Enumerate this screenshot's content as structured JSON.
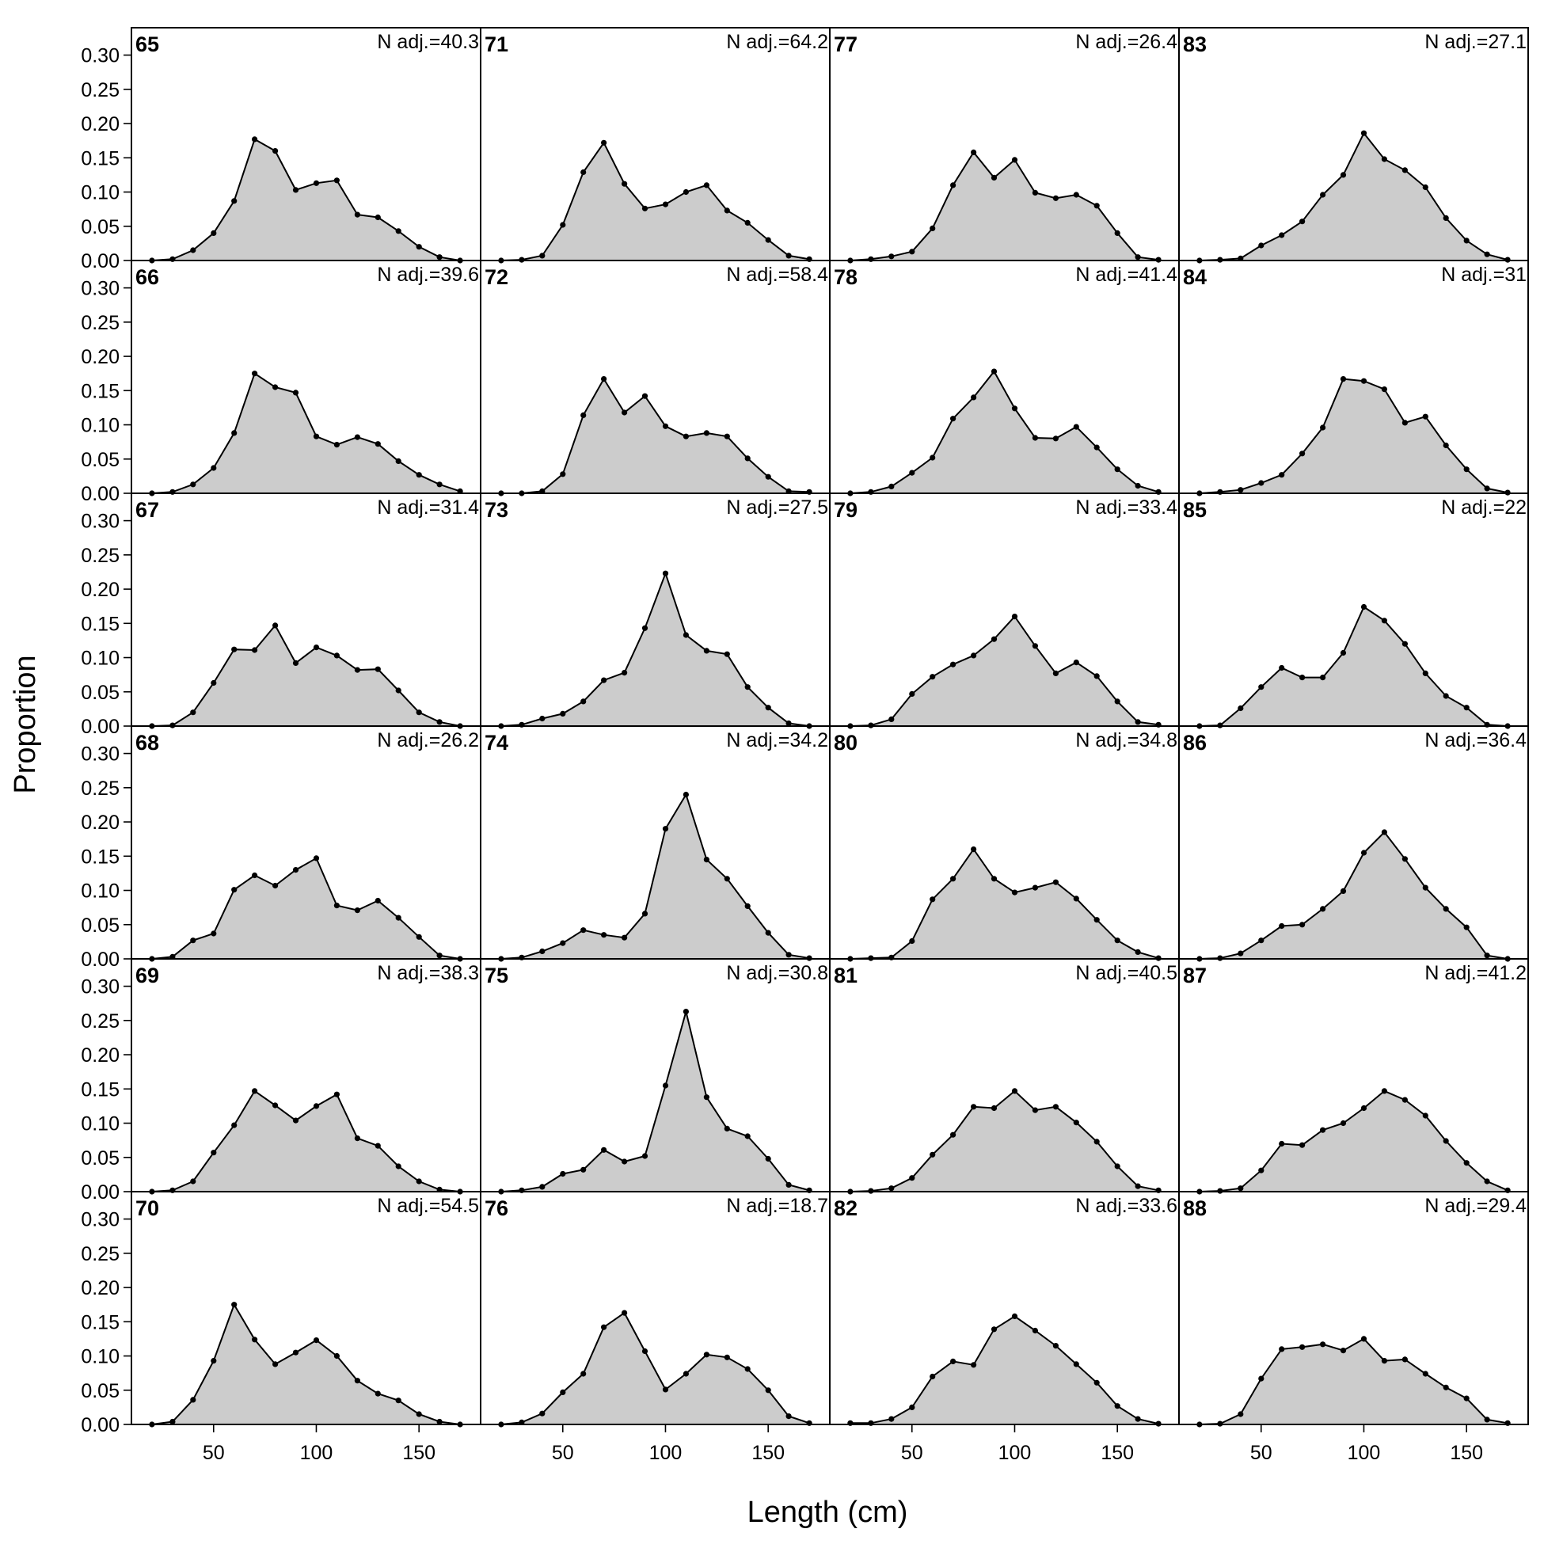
{
  "chart_data": {
    "type": "area",
    "xlabel": "Length (cm)",
    "ylabel": "Proportion",
    "xlim": [
      10,
      180
    ],
    "ylim": [
      0,
      0.34
    ],
    "x_ticks": [
      50,
      100,
      150
    ],
    "y_ticks": [
      "0.00",
      "0.05",
      "0.10",
      "0.15",
      "0.20",
      "0.25",
      "0.30"
    ],
    "x": [
      20,
      30,
      40,
      50,
      60,
      70,
      80,
      90,
      100,
      110,
      120,
      130,
      140,
      150,
      160,
      170
    ],
    "fill_color": "#cccccc",
    "line_color": "#000000",
    "panels": [
      {
        "label": "65",
        "n_adj": "N adj.=40.3",
        "values": [
          0,
          0.002,
          0.015,
          0.04,
          0.087,
          0.177,
          0.16,
          0.103,
          0.113,
          0.117,
          0.067,
          0.063,
          0.043,
          0.02,
          0.005,
          0
        ]
      },
      {
        "label": "66",
        "n_adj": "N adj.=39.6",
        "values": [
          0,
          0.002,
          0.013,
          0.037,
          0.088,
          0.175,
          0.155,
          0.147,
          0.083,
          0.071,
          0.082,
          0.072,
          0.047,
          0.027,
          0.013,
          0.003
        ]
      },
      {
        "label": "67",
        "n_adj": "N adj.=31.4",
        "values": [
          0,
          0.001,
          0.02,
          0.063,
          0.112,
          0.111,
          0.147,
          0.092,
          0.115,
          0.103,
          0.082,
          0.083,
          0.052,
          0.02,
          0.006,
          0
        ]
      },
      {
        "label": "68",
        "n_adj": "N adj.=26.2",
        "values": [
          0,
          0.003,
          0.027,
          0.037,
          0.101,
          0.122,
          0.107,
          0.13,
          0.147,
          0.078,
          0.071,
          0.085,
          0.06,
          0.032,
          0.005,
          0
        ]
      },
      {
        "label": "69",
        "n_adj": "N adj.=38.3",
        "values": [
          0,
          0.002,
          0.015,
          0.057,
          0.097,
          0.147,
          0.126,
          0.104,
          0.125,
          0.142,
          0.078,
          0.067,
          0.037,
          0.015,
          0.003,
          0
        ]
      },
      {
        "label": "70",
        "n_adj": "N adj.=54.5",
        "values": [
          0,
          0.004,
          0.036,
          0.093,
          0.175,
          0.124,
          0.088,
          0.105,
          0.123,
          0.1,
          0.064,
          0.045,
          0.035,
          0.015,
          0.004,
          0
        ]
      },
      {
        "label": "71",
        "n_adj": "N adj.=64.2",
        "values": [
          0,
          0.001,
          0.007,
          0.052,
          0.129,
          0.172,
          0.112,
          0.076,
          0.082,
          0.1,
          0.11,
          0.073,
          0.055,
          0.03,
          0.007,
          0.002
        ]
      },
      {
        "label": "72",
        "n_adj": "N adj.=58.4",
        "values": [
          0,
          0,
          0.003,
          0.028,
          0.114,
          0.167,
          0.118,
          0.142,
          0.098,
          0.083,
          0.088,
          0.083,
          0.051,
          0.024,
          0.003,
          0.002
        ]
      },
      {
        "label": "73",
        "n_adj": "N adj.=27.5",
        "values": [
          0,
          0.002,
          0.011,
          0.018,
          0.036,
          0.067,
          0.078,
          0.143,
          0.223,
          0.133,
          0.11,
          0.105,
          0.057,
          0.027,
          0.004,
          0
        ]
      },
      {
        "label": "74",
        "n_adj": "N adj.=34.2",
        "values": [
          0,
          0.002,
          0.011,
          0.023,
          0.042,
          0.035,
          0.031,
          0.066,
          0.19,
          0.24,
          0.145,
          0.117,
          0.077,
          0.038,
          0.006,
          0.001
        ]
      },
      {
        "label": "75",
        "n_adj": "N adj.=30.8",
        "values": [
          0,
          0.002,
          0.007,
          0.026,
          0.032,
          0.061,
          0.044,
          0.052,
          0.155,
          0.263,
          0.138,
          0.092,
          0.081,
          0.048,
          0.01,
          0.002
        ]
      },
      {
        "label": "76",
        "n_adj": "N adj.=18.7",
        "values": [
          0,
          0.003,
          0.016,
          0.047,
          0.074,
          0.142,
          0.163,
          0.107,
          0.051,
          0.074,
          0.102,
          0.098,
          0.081,
          0.05,
          0.012,
          0.002
        ]
      },
      {
        "label": "77",
        "n_adj": "N adj.=26.4",
        "values": [
          0,
          0.002,
          0.006,
          0.013,
          0.047,
          0.11,
          0.158,
          0.121,
          0.147,
          0.099,
          0.091,
          0.096,
          0.08,
          0.04,
          0.005,
          0.001
        ]
      },
      {
        "label": "78",
        "n_adj": "N adj.=41.4",
        "values": [
          0,
          0.002,
          0.01,
          0.03,
          0.052,
          0.109,
          0.14,
          0.178,
          0.124,
          0.081,
          0.08,
          0.097,
          0.067,
          0.035,
          0.011,
          0.002
        ]
      },
      {
        "label": "79",
        "n_adj": "N adj.=33.4",
        "values": [
          0,
          0.001,
          0.01,
          0.047,
          0.072,
          0.09,
          0.103,
          0.127,
          0.16,
          0.117,
          0.077,
          0.093,
          0.073,
          0.036,
          0.006,
          0.002
        ]
      },
      {
        "label": "80",
        "n_adj": "N adj.=34.8",
        "values": [
          0,
          0.001,
          0.002,
          0.026,
          0.087,
          0.117,
          0.16,
          0.117,
          0.097,
          0.104,
          0.112,
          0.088,
          0.057,
          0.027,
          0.01,
          0.001
        ]
      },
      {
        "label": "81",
        "n_adj": "N adj.=40.5",
        "values": [
          0,
          0.001,
          0.005,
          0.02,
          0.054,
          0.083,
          0.124,
          0.122,
          0.147,
          0.119,
          0.124,
          0.101,
          0.073,
          0.037,
          0.008,
          0.002
        ]
      },
      {
        "label": "82",
        "n_adj": "N adj.=33.6",
        "values": [
          0.002,
          0.002,
          0.008,
          0.025,
          0.07,
          0.092,
          0.087,
          0.139,
          0.158,
          0.137,
          0.115,
          0.088,
          0.061,
          0.027,
          0.008,
          0.001
        ]
      },
      {
        "label": "83",
        "n_adj": "N adj.=27.1",
        "values": [
          0,
          0.001,
          0.003,
          0.022,
          0.037,
          0.057,
          0.096,
          0.125,
          0.186,
          0.148,
          0.132,
          0.107,
          0.062,
          0.029,
          0.009,
          0.001
        ]
      },
      {
        "label": "84",
        "n_adj": "N adj.=31",
        "values": [
          0,
          0.002,
          0.005,
          0.015,
          0.027,
          0.058,
          0.096,
          0.167,
          0.164,
          0.152,
          0.103,
          0.112,
          0.07,
          0.035,
          0.007,
          0.001
        ]
      },
      {
        "label": "85",
        "n_adj": "N adj.=22",
        "values": [
          0,
          0.001,
          0.026,
          0.057,
          0.085,
          0.071,
          0.071,
          0.107,
          0.174,
          0.154,
          0.12,
          0.077,
          0.044,
          0.027,
          0.002,
          0
        ]
      },
      {
        "label": "86",
        "n_adj": "N adj.=36.4",
        "values": [
          0,
          0.001,
          0.008,
          0.027,
          0.048,
          0.05,
          0.073,
          0.099,
          0.155,
          0.185,
          0.146,
          0.104,
          0.073,
          0.046,
          0.005,
          0
        ]
      },
      {
        "label": "87",
        "n_adj": "N adj.=41.2",
        "values": [
          0,
          0.001,
          0.005,
          0.031,
          0.07,
          0.068,
          0.09,
          0.1,
          0.122,
          0.147,
          0.134,
          0.111,
          0.074,
          0.042,
          0.015,
          0.002
        ]
      },
      {
        "label": "88",
        "n_adj": "N adj.=29.4",
        "values": [
          0,
          0.001,
          0.015,
          0.067,
          0.11,
          0.113,
          0.117,
          0.108,
          0.125,
          0.093,
          0.095,
          0.074,
          0.054,
          0.038,
          0.007,
          0.002
        ]
      }
    ]
  }
}
